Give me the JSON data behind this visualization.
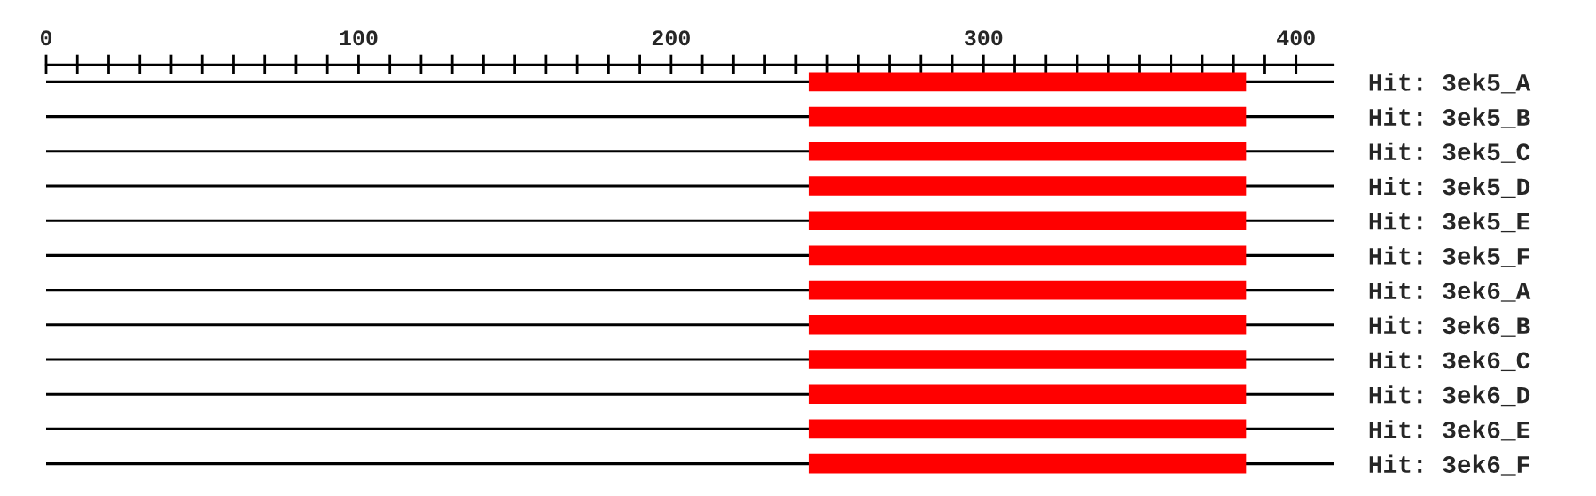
{
  "chart_data": {
    "type": "bar",
    "orientation": "horizontal",
    "categories": [
      "Hit: 3ek5_A",
      "Hit: 3ek5_B",
      "Hit: 3ek5_C",
      "Hit: 3ek5_D",
      "Hit: 3ek5_E",
      "Hit: 3ek5_F",
      "Hit: 3ek6_A",
      "Hit: 3ek6_B",
      "Hit: 3ek6_C",
      "Hit: 3ek6_D",
      "Hit: 3ek6_E",
      "Hit: 3ek6_F"
    ],
    "series": [
      {
        "color": "#000000",
        "base": [
          0,
          0,
          0,
          0,
          0,
          0,
          0,
          0,
          0,
          0,
          0,
          0
        ],
        "values": [
          412,
          412,
          412,
          412,
          412,
          412,
          412,
          412,
          412,
          412,
          412,
          412
        ]
      },
      {
        "color": "#ff0000",
        "base": [
          244,
          244,
          244,
          244,
          244,
          244,
          244,
          244,
          244,
          244,
          244,
          244
        ],
        "values": [
          140,
          140,
          140,
          140,
          140,
          140,
          140,
          140,
          140,
          140,
          140,
          140
        ]
      }
    ],
    "xlim": [
      0,
      412
    ],
    "xticks": [
      0,
      {
        "value": 10,
        "label": null
      },
      {
        "value": 20,
        "label": null
      },
      {
        "value": 30,
        "label": null
      },
      {
        "value": 40,
        "label": null
      },
      {
        "value": 50,
        "label": null
      },
      {
        "value": 60,
        "label": null
      },
      {
        "value": 70,
        "label": null
      },
      {
        "value": 80,
        "label": null
      },
      {
        "value": 90,
        "label": null
      },
      100,
      {
        "value": 110,
        "label": null
      },
      {
        "value": 120,
        "label": null
      },
      {
        "value": 130,
        "label": null
      },
      {
        "value": 140,
        "label": null
      },
      {
        "value": 150,
        "label": null
      },
      {
        "value": 160,
        "label": null
      },
      {
        "value": 170,
        "label": null
      },
      {
        "value": 180,
        "label": null
      },
      {
        "value": 190,
        "label": null
      },
      200,
      {
        "value": 210,
        "label": null
      },
      {
        "value": 220,
        "label": null
      },
      {
        "value": 230,
        "label": null
      },
      {
        "value": 240,
        "label": null
      },
      {
        "value": 250,
        "label": null
      },
      {
        "value": 260,
        "label": null
      },
      {
        "value": 270,
        "label": null
      },
      {
        "value": 280,
        "label": null
      },
      {
        "value": 290,
        "label": null
      },
      300,
      {
        "value": 310,
        "label": null
      },
      {
        "value": 320,
        "label": null
      },
      {
        "value": 330,
        "label": null
      },
      {
        "value": 340,
        "label": null
      },
      {
        "value": 350,
        "label": null
      },
      {
        "value": 360,
        "label": null
      },
      {
        "value": 370,
        "label": null
      },
      {
        "value": 380,
        "label": null
      },
      {
        "value": 390,
        "label": null
      },
      400
    ],
    "grid": false,
    "legend": false
  }
}
